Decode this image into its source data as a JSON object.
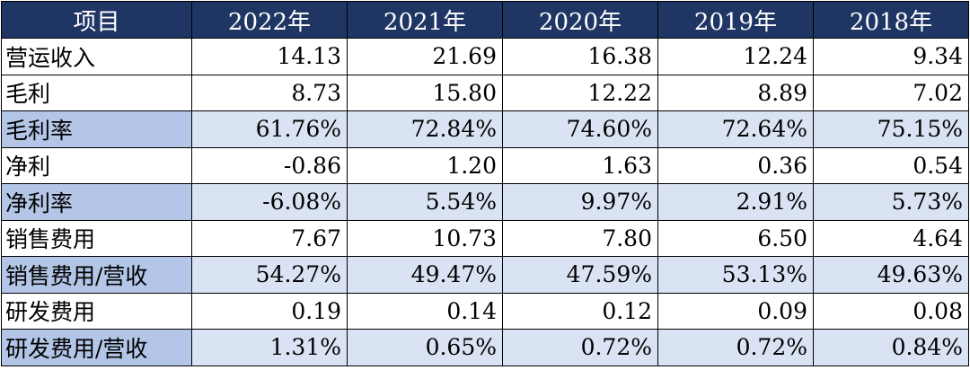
{
  "table": {
    "headers": [
      "项目",
      "2022年",
      "2021年",
      "2020年",
      "2019年",
      "2018年"
    ],
    "rows": [
      {
        "label": "营运收入",
        "values": [
          "14.13",
          "21.69",
          "16.38",
          "12.24",
          "9.34"
        ],
        "highlight": false
      },
      {
        "label": "毛利",
        "values": [
          "8.73",
          "15.80",
          "12.22",
          "8.89",
          "7.02"
        ],
        "highlight": false
      },
      {
        "label": "毛利率",
        "values": [
          "61.76%",
          "72.84%",
          "74.60%",
          "72.64%",
          "75.15%"
        ],
        "highlight": true
      },
      {
        "label": "净利",
        "values": [
          "-0.86",
          "1.20",
          "1.63",
          "0.36",
          "0.54"
        ],
        "highlight": false
      },
      {
        "label": "净利率",
        "values": [
          "-6.08%",
          "5.54%",
          "9.97%",
          "2.91%",
          "5.73%"
        ],
        "highlight": true
      },
      {
        "label": "销售费用",
        "values": [
          "7.67",
          "10.73",
          "7.80",
          "6.50",
          "4.64"
        ],
        "highlight": false
      },
      {
        "label": "销售费用/营收",
        "values": [
          "54.27%",
          "49.47%",
          "47.59%",
          "53.13%",
          "49.63%"
        ],
        "highlight": true
      },
      {
        "label": "研发费用",
        "values": [
          "0.19",
          "0.14",
          "0.12",
          "0.09",
          "0.08"
        ],
        "highlight": false
      },
      {
        "label": "研发费用/营收",
        "values": [
          "1.31%",
          "0.65%",
          "0.72%",
          "0.72%",
          "0.84%"
        ],
        "highlight": true
      }
    ]
  },
  "colors": {
    "header_bg": "#1f3564",
    "header_text": "#ffffff",
    "highlight_label_bg": "#b4c6e7",
    "highlight_value_bg": "#dae3f3"
  }
}
